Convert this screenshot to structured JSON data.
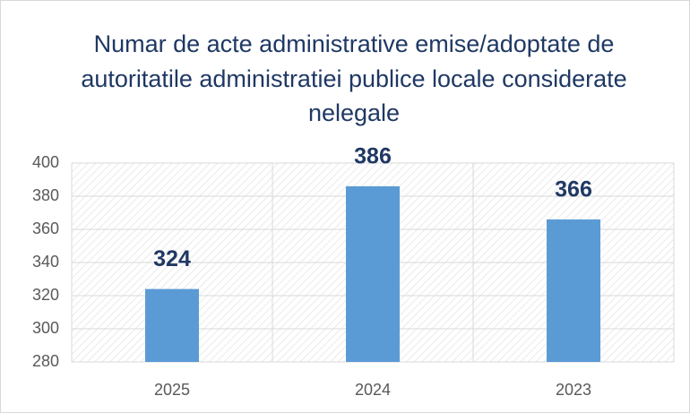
{
  "chart_data": {
    "type": "bar",
    "title": "Numar de acte administrative emise/adoptate de autoritatile administratiei publice locale considerate nelegale",
    "categories": [
      "2025",
      "2024",
      "2023"
    ],
    "values": [
      324,
      386,
      366
    ],
    "color": "#5b9bd5",
    "ylim": [
      280,
      400
    ],
    "yticks": [
      280,
      300,
      320,
      340,
      360,
      380,
      400
    ],
    "grid": true
  }
}
